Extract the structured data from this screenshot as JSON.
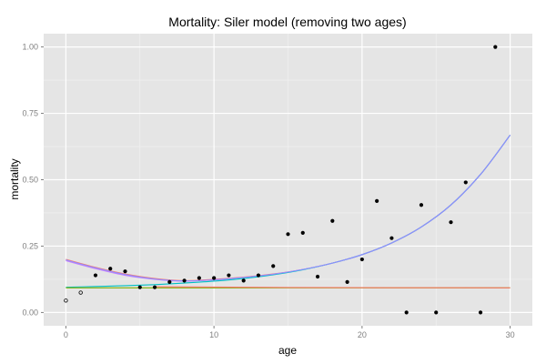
{
  "chart_data": {
    "type": "scatter",
    "title": "Mortality: Siler model (removing two ages)",
    "xlabel": "age",
    "ylabel": "mortality",
    "xlim": [
      -1.5,
      31.5
    ],
    "ylim": [
      -0.05,
      1.05
    ],
    "x_ticks": [
      0,
      10,
      20,
      30
    ],
    "y_ticks": [
      0.0,
      0.25,
      0.5,
      0.75,
      1.0
    ],
    "x_tick_labels": [
      "0",
      "10",
      "20",
      "30"
    ],
    "y_tick_labels": [
      "0.00",
      "0.25",
      "0.50",
      "0.75",
      "1.00"
    ],
    "grid": true,
    "legend": "none",
    "colors": {
      "panel_bg": "#e5e5e5",
      "grid_major": "#ffffff",
      "grid_minor": "#f2f2f2",
      "points": "#000000",
      "curve_red": "#f8766d",
      "curve_olive": "#7cae00",
      "curve_cyan": "#00bfc4",
      "curve_purple": "#c77cff",
      "curve_blue": "#8f8fff"
    },
    "points_removed": [
      {
        "x": 0,
        "y": 0.045
      },
      {
        "x": 1,
        "y": 0.075
      }
    ],
    "points": [
      {
        "x": 2,
        "y": 0.14
      },
      {
        "x": 3,
        "y": 0.165
      },
      {
        "x": 4,
        "y": 0.155
      },
      {
        "x": 5,
        "y": 0.095
      },
      {
        "x": 6,
        "y": 0.095
      },
      {
        "x": 7,
        "y": 0.115
      },
      {
        "x": 8,
        "y": 0.12
      },
      {
        "x": 9,
        "y": 0.13
      },
      {
        "x": 10,
        "y": 0.13
      },
      {
        "x": 11,
        "y": 0.14
      },
      {
        "x": 12,
        "y": 0.12
      },
      {
        "x": 13,
        "y": 0.14
      },
      {
        "x": 14,
        "y": 0.175
      },
      {
        "x": 15,
        "y": 0.295
      },
      {
        "x": 16,
        "y": 0.3
      },
      {
        "x": 17,
        "y": 0.135
      },
      {
        "x": 18,
        "y": 0.345
      },
      {
        "x": 19,
        "y": 0.115
      },
      {
        "x": 20,
        "y": 0.2
      },
      {
        "x": 21,
        "y": 0.42
      },
      {
        "x": 22,
        "y": 0.28
      },
      {
        "x": 23,
        "y": 0.0
      },
      {
        "x": 24,
        "y": 0.405
      },
      {
        "x": 25,
        "y": 0.0
      },
      {
        "x": 26,
        "y": 0.34
      },
      {
        "x": 27,
        "y": 0.49
      },
      {
        "x": 28,
        "y": 0.0
      },
      {
        "x": 29,
        "y": 1.0
      }
    ],
    "curves": [
      {
        "color_key": "curve_red",
        "x": [
          0,
          2,
          4,
          6,
          8,
          10,
          12,
          14,
          16,
          18,
          20,
          22,
          24,
          26,
          28,
          30
        ],
        "y": [
          0.2,
          0.17,
          0.145,
          0.128,
          0.12,
          0.125,
          0.133,
          0.145,
          0.162,
          0.186,
          0.218,
          0.262,
          0.322,
          0.405,
          0.52,
          0.668
        ]
      },
      {
        "color_key": "curve_purple",
        "x": [
          0,
          2,
          4,
          6,
          8,
          10,
          12,
          14,
          16,
          18,
          20,
          22,
          24,
          26,
          28,
          30
        ],
        "y": [
          0.195,
          0.165,
          0.14,
          0.125,
          0.118,
          0.123,
          0.132,
          0.144,
          0.162,
          0.186,
          0.218,
          0.262,
          0.322,
          0.405,
          0.52,
          0.668
        ]
      },
      {
        "color_key": "curve_cyan",
        "x": [
          0,
          2,
          4,
          6,
          8,
          10,
          12,
          14,
          16,
          18,
          20,
          22,
          24,
          26,
          28,
          30
        ],
        "y": [
          0.095,
          0.098,
          0.101,
          0.105,
          0.111,
          0.118,
          0.128,
          0.142,
          0.161,
          0.186,
          0.218,
          0.262,
          0.322,
          0.405,
          0.52,
          0.668
        ]
      },
      {
        "color_key": "curve_blue",
        "x": [
          0,
          2,
          4,
          6,
          8,
          10,
          12,
          14,
          16,
          18,
          20,
          22,
          24,
          26,
          28,
          30
        ],
        "y": [
          0.198,
          0.168,
          0.143,
          0.126,
          0.119,
          0.123,
          0.132,
          0.144,
          0.162,
          0.186,
          0.218,
          0.262,
          0.322,
          0.405,
          0.52,
          0.668
        ]
      },
      {
        "color_key": "curve_olive",
        "x": [
          0,
          10,
          20,
          30
        ],
        "y": [
          0.093,
          0.093,
          0.093,
          0.093
        ]
      },
      {
        "color_key": "curve_red",
        "x": [
          6,
          15,
          30
        ],
        "y": [
          0.097,
          0.094,
          0.093
        ]
      }
    ]
  }
}
